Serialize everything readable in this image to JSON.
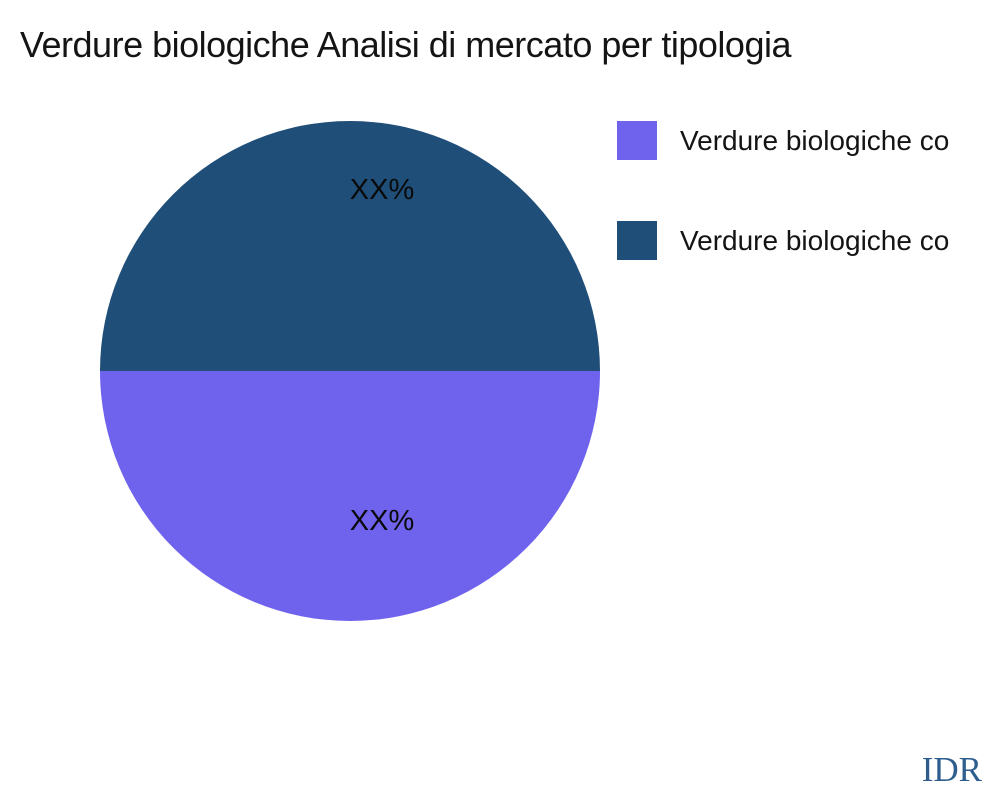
{
  "page": {
    "background": "#ffffff"
  },
  "chart_data": {
    "type": "pie",
    "title": "Verdure biologiche Analisi di mercato per tipologia",
    "legend_position": "right",
    "slices": [
      {
        "label": "Verdure biologiche co",
        "value_label": "XX%",
        "value_percent": 50,
        "color": "#6F63EE",
        "position": "bottom-half"
      },
      {
        "label": "Verdure biologiche co",
        "value_label": "XX%",
        "value_percent": 50,
        "color": "#1F4E79",
        "position": "top-half"
      }
    ]
  },
  "watermark": {
    "text": "IDR",
    "color": "#2E5E8E"
  }
}
